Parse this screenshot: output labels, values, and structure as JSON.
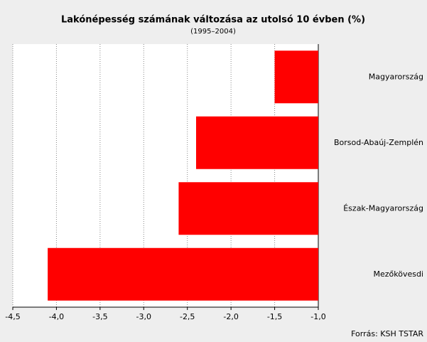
{
  "chart_data": {
    "type": "hbar",
    "title": "Lakónépesség számának változása az utolsó 10 évben (%)",
    "subtitle": "(1995–2004)",
    "source": "Forrás: KSH TSTAR",
    "categories": [
      "Magyarország",
      "Borsod-Abaúj-Zemplén",
      "Észak-Magyarország",
      "Mezőkövesdi"
    ],
    "values": [
      -1.5,
      -2.4,
      -2.6,
      -4.1
    ],
    "color": "#ff0000",
    "xlim": [
      -4.5,
      -1.0
    ],
    "xticks": [
      {
        "value": -4.5,
        "label": "-4,5"
      },
      {
        "value": -4.0,
        "label": "-4,0"
      },
      {
        "value": -3.5,
        "label": "-3,5"
      },
      {
        "value": -3.0,
        "label": "-3,0"
      },
      {
        "value": -2.5,
        "label": "-2,5"
      },
      {
        "value": -2.0,
        "label": "-2,0"
      },
      {
        "value": -1.5,
        "label": "-1,5"
      },
      {
        "value": -1.0,
        "label": "-1,0"
      }
    ],
    "grid": true
  }
}
